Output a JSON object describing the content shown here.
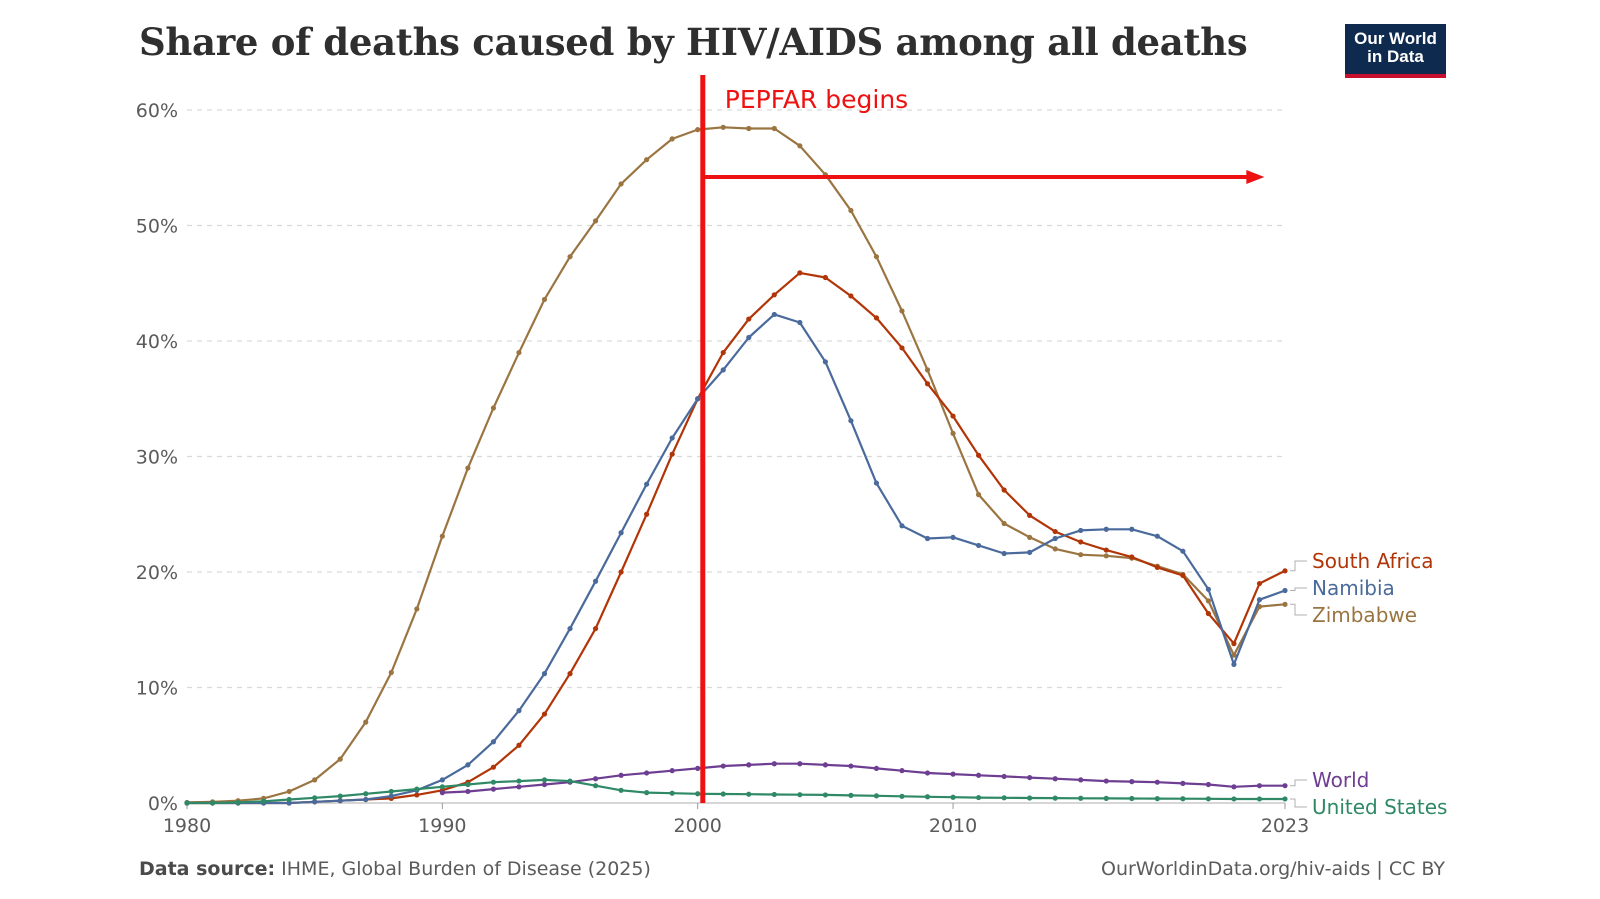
{
  "title": "Share of deaths caused by HIV/AIDS among all deaths",
  "logo": {
    "line1": "Our World",
    "line2": "in Data"
  },
  "annotation": {
    "label": "PEPFAR begins",
    "year": 2000.2,
    "arrow_to_year": 2021.8,
    "arrow_y": 54.2,
    "color": "#ee1111"
  },
  "footer": {
    "source_label": "Data source:",
    "source_text": " IHME, Global Burden of Disease (2025)",
    "url_text": "OurWorldinData.org/hiv-aids | CC BY"
  },
  "chart_data": {
    "type": "line",
    "title": "Share of deaths caused by HIV/AIDS among all deaths",
    "xlabel": "",
    "ylabel": "",
    "xlim": [
      1980,
      2023
    ],
    "ylim": [
      0,
      60
    ],
    "x_ticks": [
      "1980",
      "1990",
      "2000",
      "2010",
      "2023"
    ],
    "y_ticks": [
      "0%",
      "10%",
      "20%",
      "30%",
      "40%",
      "50%",
      "60%"
    ],
    "grid": "horizontal dashed",
    "legend": "right, labels at line ends",
    "series": [
      {
        "name": "Zimbabwe",
        "color": "#9a7541",
        "x": [
          1980,
          1981,
          1982,
          1983,
          1984,
          1985,
          1986,
          1987,
          1988,
          1989,
          1990,
          1991,
          1992,
          1993,
          1994,
          1995,
          1996,
          1997,
          1998,
          1999,
          2000,
          2001,
          2002,
          2003,
          2004,
          2005,
          2006,
          2007,
          2008,
          2009,
          2010,
          2011,
          2012,
          2013,
          2014,
          2015,
          2016,
          2017,
          2018,
          2019,
          2020,
          2021,
          2022,
          2023
        ],
        "y": [
          0.05,
          0.1,
          0.2,
          0.4,
          1.0,
          2.0,
          3.8,
          7.0,
          11.3,
          16.8,
          23.1,
          29.0,
          34.2,
          39.0,
          43.6,
          47.3,
          50.4,
          53.6,
          55.7,
          57.5,
          58.3,
          58.5,
          58.4,
          58.4,
          56.9,
          54.4,
          51.3,
          47.3,
          42.6,
          37.5,
          32.0,
          26.7,
          24.2,
          23.0,
          22.0,
          21.5,
          21.4,
          21.2,
          20.5,
          19.8,
          17.5,
          12.8,
          17.0,
          17.2
        ]
      },
      {
        "name": "South Africa",
        "color": "#b13507",
        "x": [
          1980,
          1981,
          1982,
          1983,
          1984,
          1985,
          1986,
          1987,
          1988,
          1989,
          1990,
          1991,
          1992,
          1993,
          1994,
          1995,
          1996,
          1997,
          1998,
          1999,
          2000,
          2001,
          2002,
          2003,
          2004,
          2005,
          2006,
          2007,
          2008,
          2009,
          2010,
          2011,
          2012,
          2013,
          2014,
          2015,
          2016,
          2017,
          2018,
          2019,
          2020,
          2021,
          2022,
          2023
        ],
        "y": [
          0,
          0,
          0,
          0,
          0,
          0.1,
          0.2,
          0.3,
          0.4,
          0.7,
          1.1,
          1.8,
          3.1,
          5.0,
          7.7,
          11.2,
          15.1,
          20.0,
          25.0,
          30.2,
          35.0,
          39.0,
          41.9,
          44.0,
          45.9,
          45.5,
          43.9,
          42.0,
          39.4,
          36.3,
          33.5,
          30.1,
          27.1,
          24.9,
          23.5,
          22.6,
          21.9,
          21.3,
          20.4,
          19.7,
          16.4,
          13.8,
          19.0,
          20.1
        ]
      },
      {
        "name": "Namibia",
        "color": "#4a6a9c",
        "x": [
          1980,
          1981,
          1982,
          1983,
          1984,
          1985,
          1986,
          1987,
          1988,
          1989,
          1990,
          1991,
          1992,
          1993,
          1994,
          1995,
          1996,
          1997,
          1998,
          1999,
          2000,
          2001,
          2002,
          2003,
          2004,
          2005,
          2006,
          2007,
          2008,
          2009,
          2010,
          2011,
          2012,
          2013,
          2014,
          2015,
          2016,
          2017,
          2018,
          2019,
          2020,
          2021,
          2022,
          2023
        ],
        "y": [
          0,
          0,
          0,
          0,
          0,
          0.1,
          0.2,
          0.3,
          0.6,
          1.1,
          2.0,
          3.3,
          5.3,
          8.0,
          11.2,
          15.1,
          19.2,
          23.4,
          27.6,
          31.6,
          35.0,
          37.5,
          40.3,
          42.3,
          41.6,
          38.2,
          33.1,
          27.7,
          24.0,
          22.9,
          23.0,
          22.3,
          21.6,
          21.7,
          22.9,
          23.6,
          23.7,
          23.7,
          23.1,
          21.8,
          18.5,
          12.0,
          17.6,
          18.4
        ]
      },
      {
        "name": "World",
        "color": "#6d3e91",
        "x": [
          1990,
          1991,
          1992,
          1993,
          1994,
          1995,
          1996,
          1997,
          1998,
          1999,
          2000,
          2001,
          2002,
          2003,
          2004,
          2005,
          2006,
          2007,
          2008,
          2009,
          2010,
          2011,
          2012,
          2013,
          2014,
          2015,
          2016,
          2017,
          2018,
          2019,
          2020,
          2021,
          2022,
          2023
        ],
        "y": [
          0.9,
          1.0,
          1.2,
          1.4,
          1.6,
          1.8,
          2.1,
          2.4,
          2.6,
          2.8,
          3.0,
          3.2,
          3.3,
          3.4,
          3.4,
          3.3,
          3.2,
          3.0,
          2.8,
          2.6,
          2.5,
          2.4,
          2.3,
          2.2,
          2.1,
          2.0,
          1.9,
          1.85,
          1.8,
          1.7,
          1.6,
          1.4,
          1.5,
          1.5
        ]
      },
      {
        "name": "United States",
        "color": "#2f8966",
        "x": [
          1980,
          1981,
          1982,
          1983,
          1984,
          1985,
          1986,
          1987,
          1988,
          1989,
          1990,
          1991,
          1992,
          1993,
          1994,
          1995,
          1996,
          1997,
          1998,
          1999,
          2000,
          2001,
          2002,
          2003,
          2004,
          2005,
          2006,
          2007,
          2008,
          2009,
          2010,
          2011,
          2012,
          2013,
          2014,
          2015,
          2016,
          2017,
          2018,
          2019,
          2020,
          2021,
          2022,
          2023
        ],
        "y": [
          0,
          0,
          0.05,
          0.15,
          0.3,
          0.45,
          0.6,
          0.8,
          1.0,
          1.2,
          1.4,
          1.6,
          1.8,
          1.9,
          2.0,
          1.9,
          1.5,
          1.1,
          0.9,
          0.85,
          0.8,
          0.78,
          0.76,
          0.74,
          0.72,
          0.7,
          0.66,
          0.62,
          0.58,
          0.54,
          0.5,
          0.47,
          0.45,
          0.43,
          0.42,
          0.41,
          0.4,
          0.39,
          0.38,
          0.37,
          0.36,
          0.35,
          0.35,
          0.35
        ]
      }
    ]
  }
}
